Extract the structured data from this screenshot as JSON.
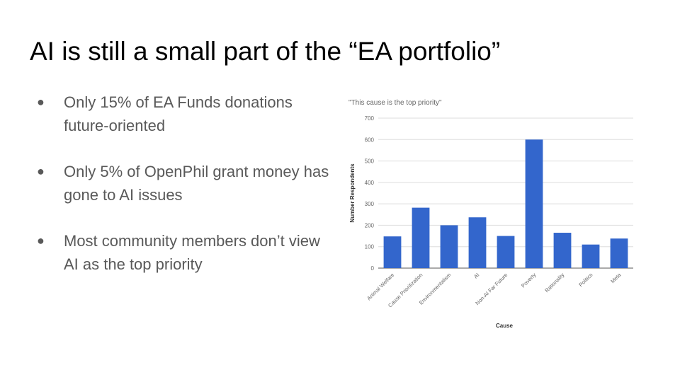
{
  "slide": {
    "title": "AI is still a small part of the “EA portfolio”",
    "bullets": [
      {
        "text": "Only 15% of EA Funds donations future-oriented"
      },
      {
        "text": "Only 5% of OpenPhil grant money has gone to AI issues"
      },
      {
        "text": "Most community members don’t view AI as the top priority"
      }
    ],
    "bullet_symbol": "●"
  },
  "colors": {
    "bar": "#3366cc",
    "title": "#000000",
    "body_text": "#595959",
    "grid": "#dddddd"
  },
  "chart_data": {
    "type": "bar",
    "title": "\"This cause is the top priority\"",
    "xlabel": "Cause",
    "ylabel": "Number Respondents",
    "categories": [
      "Animal Welfare",
      "Cause Prioritization",
      "Environmentalism",
      "AI",
      "Non-AI Far Future",
      "Poverty",
      "Rationality",
      "Politics",
      "Meta"
    ],
    "values": [
      148,
      282,
      200,
      237,
      150,
      600,
      165,
      110,
      138
    ],
    "ylim": [
      0,
      700
    ],
    "yticks": [
      0,
      100,
      200,
      300,
      400,
      500,
      600,
      700
    ],
    "grid": true,
    "legend": "none"
  }
}
